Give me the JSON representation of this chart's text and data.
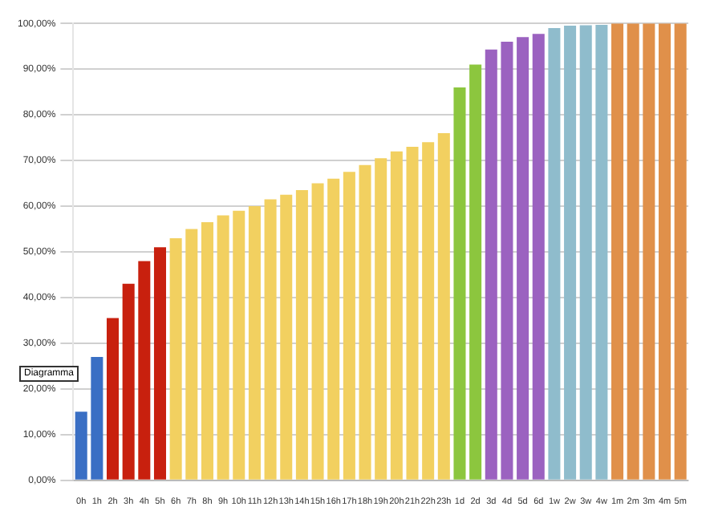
{
  "chart_data": {
    "type": "bar",
    "categories": [
      "0h",
      "1h",
      "2h",
      "3h",
      "4h",
      "5h",
      "6h",
      "7h",
      "8h",
      "9h",
      "10h",
      "11h",
      "12h",
      "13h",
      "14h",
      "15h",
      "16h",
      "17h",
      "18h",
      "19h",
      "20h",
      "21h",
      "22h",
      "23h",
      "1d",
      "2d",
      "3d",
      "4d",
      "5d",
      "6d",
      "1w",
      "2w",
      "3w",
      "4w",
      "1m",
      "2m",
      "3m",
      "4m",
      "5m"
    ],
    "values": [
      15,
      27,
      35.5,
      43,
      48,
      51,
      53,
      55,
      56.5,
      58,
      59,
      60,
      61.5,
      62.5,
      63.5,
      65,
      66,
      67.5,
      69,
      70.5,
      72,
      73,
      74,
      76,
      86,
      91,
      94.3,
      96,
      97,
      97.7,
      99,
      99.5,
      99.6,
      99.7,
      100,
      100,
      100,
      100,
      100
    ],
    "colors": [
      "#3a6fc4",
      "#3a6fc4",
      "#c8200e",
      "#c8200e",
      "#c8200e",
      "#c8200e",
      "#f2d060",
      "#f2d060",
      "#f2d060",
      "#f2d060",
      "#f2d060",
      "#f2d060",
      "#f2d060",
      "#f2d060",
      "#f2d060",
      "#f2d060",
      "#f2d060",
      "#f2d060",
      "#f2d060",
      "#f2d060",
      "#f2d060",
      "#f2d060",
      "#f2d060",
      "#f2d060",
      "#8cc63e",
      "#8cc63e",
      "#9b62c0",
      "#9b62c0",
      "#9b62c0",
      "#9b62c0",
      "#8fbccc",
      "#8fbccc",
      "#8fbccc",
      "#8fbccc",
      "#e0904a",
      "#e0904a",
      "#e0904a",
      "#e0904a",
      "#e0904a"
    ],
    "ylim": [
      0,
      100
    ],
    "yticks": [
      {
        "value": 0,
        "label": "0,00%"
      },
      {
        "value": 10,
        "label": "10,00%"
      },
      {
        "value": 20,
        "label": "20,00%"
      },
      {
        "value": 30,
        "label": "30,00%"
      },
      {
        "value": 40,
        "label": "40,00%"
      },
      {
        "value": 50,
        "label": "50,00%"
      },
      {
        "value": 60,
        "label": "60,00%"
      },
      {
        "value": 70,
        "label": "70,00%"
      },
      {
        "value": 80,
        "label": "80,00%"
      },
      {
        "value": 90,
        "label": "90,00%"
      },
      {
        "value": 100,
        "label": "100,00%"
      }
    ],
    "grid": "y",
    "legend": false,
    "annotations": [
      "Diagramma"
    ]
  }
}
